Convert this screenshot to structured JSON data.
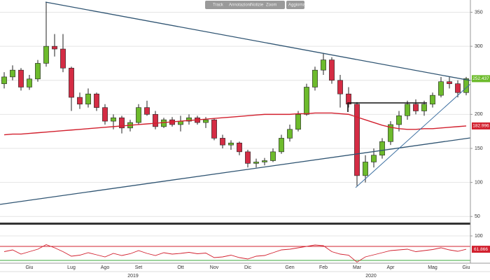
{
  "toolbar": [
    "Track",
    "Annotazioni",
    "Notizie",
    "Zoom",
    "Aggiorna"
  ],
  "chart_data": [
    {
      "type": "candlestick",
      "categories": [
        null,
        null,
        null,
        "Giu",
        null,
        null,
        null,
        null,
        "Lug",
        null,
        null,
        null,
        "Ago",
        null,
        null,
        null,
        "Set",
        null,
        null,
        null,
        null,
        "Ott",
        null,
        null,
        null,
        "Nov",
        null,
        null,
        null,
        "Dic",
        null,
        null,
        null,
        null,
        "Gen",
        null,
        null,
        null,
        "Feb",
        null,
        null,
        null,
        "Mar",
        null,
        null,
        null,
        "Apr",
        null,
        null,
        null,
        null,
        "Mag",
        null,
        null,
        null,
        "Giu"
      ],
      "years": [
        "2019",
        "2020"
      ],
      "open": [
        245,
        255,
        265,
        240,
        252,
        275,
        300,
        296,
        268,
        225,
        215,
        230,
        210,
        190,
        195,
        180,
        188,
        210,
        200,
        182,
        192,
        185,
        190,
        195,
        188,
        192,
        165,
        155,
        158,
        145,
        128,
        130,
        132,
        145,
        165,
        178,
        200,
        240,
        265,
        280,
        250,
        230,
        215,
        110,
        130,
        140,
        160,
        185,
        198,
        215,
        205,
        215,
        228,
        248,
        245,
        232
      ],
      "high": [
        262,
        272,
        268,
        258,
        280,
        365,
        318,
        318,
        270,
        232,
        238,
        232,
        215,
        200,
        198,
        192,
        215,
        220,
        205,
        195,
        196,
        198,
        200,
        198,
        196,
        194,
        170,
        162,
        160,
        148,
        135,
        136,
        150,
        170,
        185,
        205,
        245,
        270,
        290,
        284,
        258,
        240,
        218,
        140,
        150,
        165,
        190,
        205,
        220,
        222,
        220,
        232,
        255,
        255,
        250,
        255
      ],
      "low": [
        238,
        250,
        235,
        236,
        248,
        270,
        285,
        262,
        205,
        208,
        210,
        205,
        185,
        178,
        172,
        175,
        185,
        198,
        178,
        180,
        182,
        175,
        185,
        185,
        180,
        162,
        150,
        148,
        140,
        122,
        122,
        125,
        130,
        142,
        160,
        175,
        198,
        235,
        258,
        245,
        210,
        210,
        95,
        100,
        122,
        135,
        155,
        175,
        192,
        200,
        198,
        210,
        225,
        238,
        225,
        228
      ],
      "close": [
        255,
        265,
        240,
        252,
        275,
        300,
        296,
        268,
        225,
        215,
        230,
        210,
        190,
        195,
        180,
        188,
        210,
        200,
        182,
        192,
        185,
        190,
        195,
        188,
        192,
        165,
        155,
        158,
        145,
        128,
        130,
        132,
        145,
        165,
        178,
        200,
        240,
        265,
        280,
        250,
        230,
        215,
        110,
        130,
        140,
        160,
        185,
        198,
        215,
        205,
        215,
        228,
        248,
        245,
        232,
        252.437
      ],
      "up_color": "#6dbb2c",
      "down_color": "#d42c44",
      "overlay": {
        "color": "#d2202e",
        "values": [
          170,
          171,
          171,
          172,
          173,
          174,
          175,
          176,
          177,
          178,
          179,
          180,
          181,
          182,
          183,
          184,
          185,
          186,
          187,
          188,
          189,
          190,
          191,
          192,
          193,
          194,
          195,
          196,
          197,
          198,
          199,
          200,
          200,
          200,
          200,
          201,
          201,
          202,
          202,
          202,
          201,
          200,
          196,
          192,
          188,
          184,
          181,
          179,
          178,
          178,
          179,
          179,
          180,
          181,
          182,
          182.996
        ]
      },
      "ylim": [
        41,
        368
      ],
      "yticks": [
        350,
        300,
        250,
        200,
        150,
        100,
        50
      ],
      "grid": true
    },
    {
      "type": "line",
      "color": "#d2202e",
      "values": [
        55,
        60,
        48,
        55,
        62,
        75,
        66,
        55,
        42,
        45,
        52,
        46,
        40,
        50,
        44,
        49,
        58,
        50,
        44,
        52,
        48,
        50,
        53,
        49,
        51,
        38,
        40,
        45,
        38,
        34,
        42,
        44,
        52,
        60,
        62,
        66,
        70,
        74,
        72,
        55,
        48,
        45,
        25,
        40,
        46,
        52,
        58,
        60,
        62,
        55,
        58,
        61,
        66,
        60,
        56,
        61.866
      ],
      "levels": [
        {
          "value": 70,
          "color": "#d2202e"
        },
        {
          "value": 30,
          "color": "#3ea83e"
        }
      ],
      "ylim": [
        30,
        130
      ],
      "yticks": [
        100
      ],
      "grid": true
    }
  ]
}
